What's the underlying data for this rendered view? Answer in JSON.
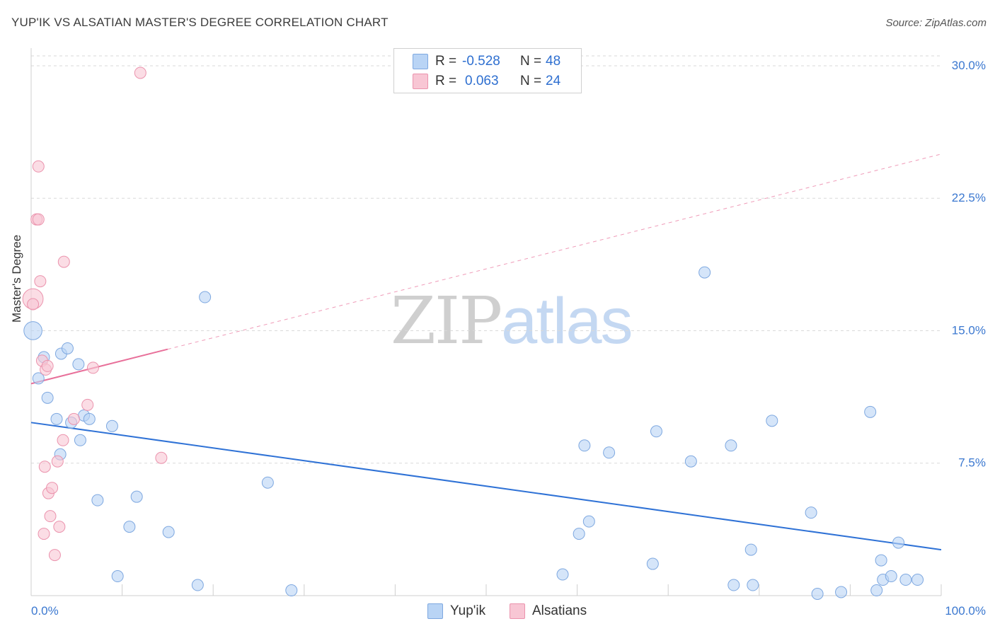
{
  "header": {
    "title": "YUP'IK VS ALSATIAN MASTER'S DEGREE CORRELATION CHART",
    "source": "Source: ZipAtlas.com"
  },
  "watermark": {
    "part1": "ZIP",
    "part2": "atlas"
  },
  "legend": {
    "row1": {
      "r_label": "R =",
      "r_value": "-0.528",
      "n_label": "N =",
      "n_value": "48"
    },
    "row2": {
      "r_label": "R =",
      "r_value": "0.063",
      "n_label": "N =",
      "n_value": "24"
    }
  },
  "bottom_legend": {
    "series1": "Yup'ik",
    "series2": "Alsatians"
  },
  "colors": {
    "blue_fill": "#b9d4f5",
    "blue_stroke": "#7ea8e0",
    "blue_line": "#2f72d6",
    "pink_fill": "#f8c6d4",
    "pink_stroke": "#eb93ad",
    "pink_line": "#e8709a",
    "axis_text": "#3b78d0",
    "grid": "#d9d9d9"
  },
  "chart_data": {
    "type": "scatter",
    "title": "YUP'IK VS ALSATIAN MASTER'S DEGREE CORRELATION CHART",
    "xlabel": "",
    "ylabel": "Master's Degree",
    "xlim": [
      0,
      100
    ],
    "ylim": [
      0,
      31
    ],
    "x_tick_labels": [
      "0.0%",
      "100.0%"
    ],
    "y_ticks": [
      7.5,
      15.0,
      22.5,
      30.0
    ],
    "y_tick_labels": [
      "7.5%",
      "15.0%",
      "22.5%",
      "30.0%"
    ],
    "grid": true,
    "legend_position": "top-center",
    "series": [
      {
        "name": "Yup'ik",
        "r": -0.528,
        "n": 48,
        "trend": {
          "x": [
            0,
            100
          ],
          "y": [
            9.8,
            2.6
          ],
          "style": "solid"
        },
        "points": [
          {
            "x": 0.2,
            "y": 15.0,
            "s": 1.6
          },
          {
            "x": 0.8,
            "y": 12.3
          },
          {
            "x": 1.4,
            "y": 13.5
          },
          {
            "x": 1.8,
            "y": 11.2
          },
          {
            "x": 2.8,
            "y": 10.0
          },
          {
            "x": 3.2,
            "y": 8.0
          },
          {
            "x": 3.3,
            "y": 13.7
          },
          {
            "x": 4.0,
            "y": 14.0
          },
          {
            "x": 4.4,
            "y": 9.8
          },
          {
            "x": 5.2,
            "y": 13.1
          },
          {
            "x": 5.4,
            "y": 8.8
          },
          {
            "x": 5.8,
            "y": 10.2
          },
          {
            "x": 6.4,
            "y": 10.0
          },
          {
            "x": 7.3,
            "y": 5.4
          },
          {
            "x": 8.9,
            "y": 9.6
          },
          {
            "x": 9.5,
            "y": 1.1
          },
          {
            "x": 10.8,
            "y": 3.9
          },
          {
            "x": 11.6,
            "y": 5.6
          },
          {
            "x": 15.1,
            "y": 3.6
          },
          {
            "x": 18.3,
            "y": 0.6
          },
          {
            "x": 19.1,
            "y": 16.9
          },
          {
            "x": 26.0,
            "y": 6.4
          },
          {
            "x": 28.6,
            "y": 0.3
          },
          {
            "x": 58.4,
            "y": 1.2
          },
          {
            "x": 60.2,
            "y": 3.5
          },
          {
            "x": 60.8,
            "y": 8.5
          },
          {
            "x": 61.3,
            "y": 4.2
          },
          {
            "x": 63.5,
            "y": 8.1
          },
          {
            "x": 68.3,
            "y": 1.8
          },
          {
            "x": 68.7,
            "y": 9.3
          },
          {
            "x": 72.5,
            "y": 7.6
          },
          {
            "x": 74.0,
            "y": 18.3
          },
          {
            "x": 76.9,
            "y": 8.5
          },
          {
            "x": 77.2,
            "y": 0.6
          },
          {
            "x": 79.1,
            "y": 2.6
          },
          {
            "x": 79.3,
            "y": 0.6
          },
          {
            "x": 81.4,
            "y": 9.9
          },
          {
            "x": 85.7,
            "y": 4.7
          },
          {
            "x": 86.4,
            "y": 0.1
          },
          {
            "x": 89.0,
            "y": 0.2
          },
          {
            "x": 92.2,
            "y": 10.4
          },
          {
            "x": 92.9,
            "y": 0.3
          },
          {
            "x": 93.4,
            "y": 2.0
          },
          {
            "x": 93.6,
            "y": 0.9
          },
          {
            "x": 94.5,
            "y": 1.1
          },
          {
            "x": 95.3,
            "y": 3.0
          },
          {
            "x": 96.1,
            "y": 0.9
          },
          {
            "x": 97.4,
            "y": 0.9
          }
        ]
      },
      {
        "name": "Alsatians",
        "r": 0.063,
        "n": 24,
        "trend": {
          "x": [
            0,
            100
          ],
          "y": [
            12.0,
            25.0
          ],
          "solid_until": 15,
          "style": "solid-then-dashed"
        },
        "points": [
          {
            "x": 0.2,
            "y": 16.8,
            "s": 1.8
          },
          {
            "x": 0.2,
            "y": 16.5
          },
          {
            "x": 0.6,
            "y": 21.3
          },
          {
            "x": 0.8,
            "y": 21.3
          },
          {
            "x": 0.8,
            "y": 24.3
          },
          {
            "x": 1.0,
            "y": 17.8
          },
          {
            "x": 1.2,
            "y": 13.3
          },
          {
            "x": 1.4,
            "y": 3.5
          },
          {
            "x": 1.5,
            "y": 7.3
          },
          {
            "x": 1.6,
            "y": 12.8
          },
          {
            "x": 1.8,
            "y": 13.0
          },
          {
            "x": 1.9,
            "y": 5.8
          },
          {
            "x": 2.1,
            "y": 4.5
          },
          {
            "x": 2.3,
            "y": 6.1
          },
          {
            "x": 2.6,
            "y": 2.3
          },
          {
            "x": 2.9,
            "y": 7.6
          },
          {
            "x": 3.1,
            "y": 3.9
          },
          {
            "x": 3.5,
            "y": 8.8
          },
          {
            "x": 3.6,
            "y": 18.9
          },
          {
            "x": 4.7,
            "y": 10.0
          },
          {
            "x": 6.2,
            "y": 10.8
          },
          {
            "x": 6.8,
            "y": 12.9
          },
          {
            "x": 12.0,
            "y": 29.6
          },
          {
            "x": 14.3,
            "y": 7.8
          }
        ]
      }
    ]
  }
}
